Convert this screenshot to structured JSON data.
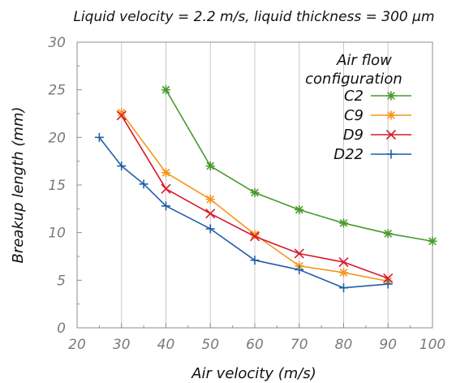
{
  "chart_data": {
    "type": "line",
    "title": "Liquid velocity = 2.2 m/s, liquid thickness = 300 µm",
    "xlabel": "Air velocity (m/s)",
    "ylabel": "Breakup length (mm)",
    "xlim": [
      20,
      100
    ],
    "ylim": [
      0,
      30
    ],
    "xticks": [
      "20",
      "30",
      "40",
      "50",
      "60",
      "70",
      "80",
      "90",
      "100"
    ],
    "yticks": [
      "0",
      "5",
      "10",
      "15",
      "20",
      "25",
      "30"
    ],
    "grid": "vertical",
    "legend": {
      "title_lines": [
        "Air flow",
        "configuration"
      ],
      "placement": "top-right"
    },
    "series": [
      {
        "name": "C2",
        "color": "#4a9a2e",
        "marker": "asterisk",
        "x": [
          40,
          50,
          60,
          70,
          80,
          90,
          100
        ],
        "y": [
          25.0,
          17.0,
          14.2,
          12.4,
          11.0,
          9.9,
          9.1
        ]
      },
      {
        "name": "C9",
        "color": "#f7941d",
        "marker": "asterisk",
        "x": [
          30,
          40,
          50,
          60,
          70,
          80,
          90
        ],
        "y": [
          22.6,
          16.3,
          13.5,
          9.8,
          6.5,
          5.8,
          4.9
        ]
      },
      {
        "name": "D9",
        "color": "#d7192b",
        "marker": "x",
        "x": [
          30,
          40,
          50,
          60,
          70,
          80,
          90
        ],
        "y": [
          22.3,
          14.6,
          12.0,
          9.6,
          7.8,
          6.9,
          5.2
        ]
      },
      {
        "name": "D22",
        "color": "#1f5fa8",
        "marker": "plus",
        "x": [
          25,
          30,
          35,
          40,
          50,
          60,
          70,
          80,
          90
        ],
        "y": [
          20.0,
          17.0,
          15.1,
          12.8,
          10.4,
          7.1,
          6.1,
          4.2,
          4.6
        ]
      }
    ]
  }
}
